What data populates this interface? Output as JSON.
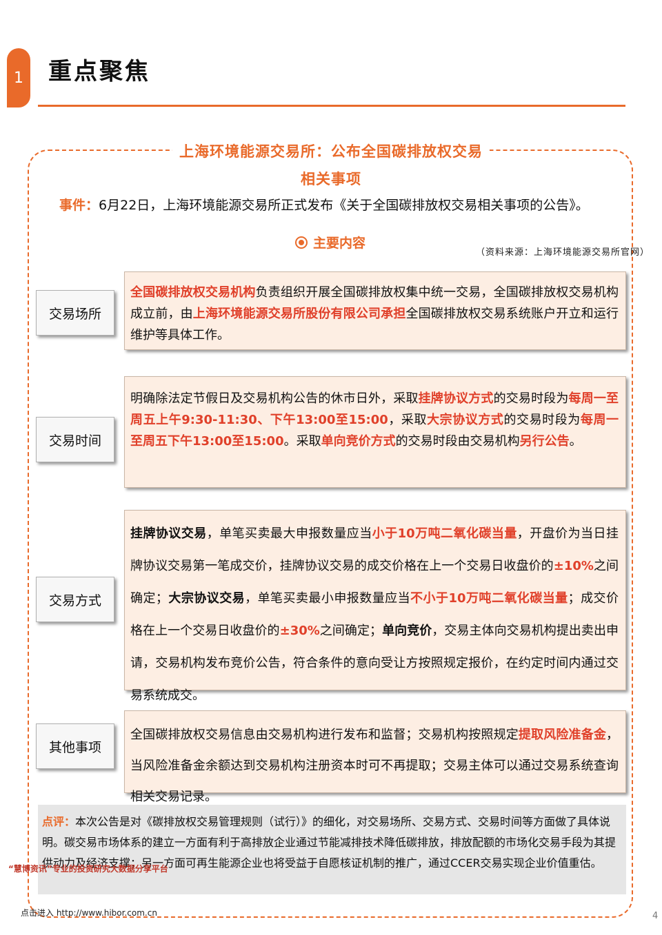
{
  "header": {
    "section_number": "1",
    "title": "重点聚焦"
  },
  "panel": {
    "title": "上海环境能源交易所：公布全国碳排放权交易相关事项",
    "event_label": "事件：",
    "event_text": "6月22日，上海环境能源交易所正式发布《关于全国碳排放权交易相关事项的公告》。",
    "main_content_label": "主要内容",
    "source": "（资料来源：上海环境能源交易所官网）"
  },
  "rows": [
    {
      "label": "交易场所",
      "segments": [
        {
          "t": "全国碳排放权交易机构",
          "s": "o"
        },
        {
          "t": "负责组织开展全国碳排放权集中统一交易，全国碳排放权交易机构成立前，由",
          "s": ""
        },
        {
          "t": "上海环境能源交易所股份有限公司承担",
          "s": "o"
        },
        {
          "t": "全国碳排放权交易系统账户开立和运行维护等具体工作。",
          "s": ""
        }
      ]
    },
    {
      "label": "交易时间",
      "segments": [
        {
          "t": "明确除法定节假日及交易机构公告的休市日外，采取",
          "s": ""
        },
        {
          "t": "挂牌协议方式",
          "s": "o"
        },
        {
          "t": "的交易时段为",
          "s": ""
        },
        {
          "t": "每周一至周五上午9:30-11:30、下午13:00至15:00",
          "s": "o"
        },
        {
          "t": "，采取",
          "s": ""
        },
        {
          "t": "大宗协议方式",
          "s": "o"
        },
        {
          "t": "的交易时段为",
          "s": ""
        },
        {
          "t": "每周一至周五下午13:00至15:00",
          "s": "o"
        },
        {
          "t": "。采取",
          "s": ""
        },
        {
          "t": "单向竞价方式",
          "s": "o"
        },
        {
          "t": "的交易时段由交易机构",
          "s": ""
        },
        {
          "t": "另行公告",
          "s": "o"
        },
        {
          "t": "。",
          "s": ""
        }
      ]
    },
    {
      "label": "交易方式",
      "segments": [
        {
          "t": "挂牌协议交易",
          "s": "b"
        },
        {
          "t": "，单笔买卖最大申报数量应当",
          "s": ""
        },
        {
          "t": "小于10万吨二氧化碳当量",
          "s": "o"
        },
        {
          "t": "，开盘价为当日挂牌协议交易第一笔成交价，挂牌协议交易的成交价格在上一个交易日收盘价的",
          "s": ""
        },
        {
          "t": "±10%",
          "s": "o"
        },
        {
          "t": "之间确定；",
          "s": ""
        },
        {
          "t": "大宗协议交易",
          "s": "b"
        },
        {
          "t": "，单笔买卖最小申报数量应当",
          "s": ""
        },
        {
          "t": "不小于10万吨二氧化碳当量",
          "s": "o"
        },
        {
          "t": "；成交价格在上一个交易日收盘价的",
          "s": ""
        },
        {
          "t": "±30%",
          "s": "o"
        },
        {
          "t": "之间确定；",
          "s": ""
        },
        {
          "t": "单向竞价",
          "s": "b"
        },
        {
          "t": "，交易主体向交易机构提出卖出申请，交易机构发布竞价公告，符合条件的意向受让方按照规定报价，在约定时间内通过交易系统成交。",
          "s": ""
        }
      ]
    },
    {
      "label": "其他事项",
      "segments": [
        {
          "t": "全国碳排放权交易信息由交易机构进行发布和监督；交易机构按照规定",
          "s": ""
        },
        {
          "t": "提取风险准备金",
          "s": "o"
        },
        {
          "t": "，当风险准备金余额达到交易机构注册资本时可不再提取；交易主体可以通过交易系统查询相关交易记录。",
          "s": ""
        }
      ]
    }
  ],
  "comment": {
    "label": "点评：",
    "text": "本次公告是对《碳排放权交易管理规则（试行）》的细化，对交易场所、交易方式、交易时间等方面做了具体说明。碳交易市场体系的建立一方面有利于高排放企业通过节能减排技术降低碳排放，排放配额的市场化交易手段为其提供动力及经济支撑；另一方面可再生能源企业也将受益于自愿核证机制的推广，通过CCER交易实现企业价值重估。"
  },
  "footer": {
    "promo": "“慧博资讯”专业的投资研究大数据分享平台",
    "link": "点击进入 http://www.hibor.com.cn",
    "page_number": "4"
  },
  "colors": {
    "accent": "#e96a2a",
    "highlight": "#e0402a",
    "content_bg": "#fdeee3",
    "comment_bg": "#e6e6e6"
  }
}
